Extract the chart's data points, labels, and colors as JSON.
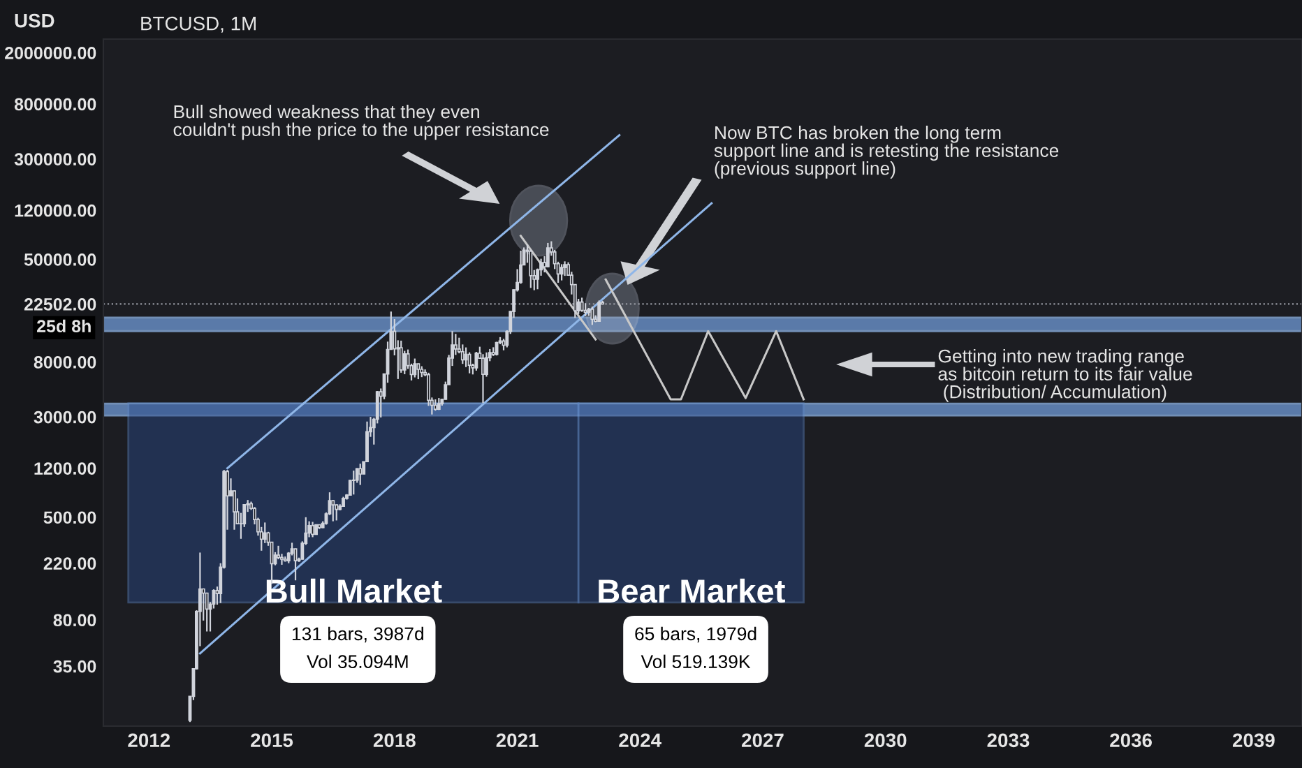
{
  "chart_data": {
    "type": "candlestick",
    "title": "BTCUSD, 1M",
    "ylabel": "USD",
    "x": [
      "2013-01",
      "2013-02",
      "2013-03",
      "2013-04",
      "2013-05",
      "2013-06",
      "2013-07",
      "2013-08",
      "2013-09",
      "2013-10",
      "2013-11",
      "2013-12",
      "2014-01",
      "2014-02",
      "2014-03",
      "2014-04",
      "2014-05",
      "2014-06",
      "2014-07",
      "2014-08",
      "2014-09",
      "2014-10",
      "2014-11",
      "2014-12",
      "2015-01",
      "2015-02",
      "2015-03",
      "2015-04",
      "2015-05",
      "2015-06",
      "2015-07",
      "2015-08",
      "2015-09",
      "2015-10",
      "2015-11",
      "2015-12",
      "2016-01",
      "2016-02",
      "2016-03",
      "2016-04",
      "2016-05",
      "2016-06",
      "2016-07",
      "2016-08",
      "2016-09",
      "2016-10",
      "2016-11",
      "2016-12",
      "2017-01",
      "2017-02",
      "2017-03",
      "2017-04",
      "2017-05",
      "2017-06",
      "2017-07",
      "2017-08",
      "2017-09",
      "2017-10",
      "2017-11",
      "2017-12",
      "2018-01",
      "2018-02",
      "2018-03",
      "2018-04",
      "2018-05",
      "2018-06",
      "2018-07",
      "2018-08",
      "2018-09",
      "2018-10",
      "2018-11",
      "2018-12",
      "2019-01",
      "2019-02",
      "2019-03",
      "2019-04",
      "2019-05",
      "2019-06",
      "2019-07",
      "2019-08",
      "2019-09",
      "2019-10",
      "2019-11",
      "2019-12",
      "2020-01",
      "2020-02",
      "2020-03",
      "2020-04",
      "2020-05",
      "2020-06",
      "2020-07",
      "2020-08",
      "2020-09",
      "2020-10",
      "2020-11",
      "2020-12",
      "2021-01",
      "2021-02",
      "2021-03",
      "2021-04",
      "2021-05",
      "2021-06",
      "2021-07",
      "2021-08",
      "2021-09",
      "2021-10",
      "2021-11",
      "2021-12",
      "2022-01",
      "2022-02",
      "2022-03",
      "2022-04",
      "2022-05",
      "2022-06",
      "2022-07",
      "2022-08",
      "2022-09",
      "2022-10",
      "2022-11",
      "2022-12",
      "2023-01",
      "2023-02"
    ],
    "ohlc": [
      [
        13.3,
        20.4,
        12.9,
        20.4
      ],
      [
        20.4,
        33.5,
        19.1,
        33.4
      ],
      [
        33.4,
        95,
        33,
        93
      ],
      [
        93,
        266,
        50,
        139
      ],
      [
        139,
        140,
        79,
        129
      ],
      [
        129,
        130,
        65,
        97
      ],
      [
        97,
        110,
        65,
        106
      ],
      [
        106,
        138,
        98,
        135
      ],
      [
        135,
        145,
        105,
        128
      ],
      [
        128,
        220,
        108,
        205
      ],
      [
        205,
        1163,
        200,
        1130
      ],
      [
        1130,
        1165,
        400,
        732
      ],
      [
        732,
        1000,
        731,
        800
      ],
      [
        800,
        805,
        400,
        550
      ],
      [
        550,
        700,
        445,
        445
      ],
      [
        445,
        540,
        340,
        445
      ],
      [
        445,
        630,
        420,
        625
      ],
      [
        625,
        680,
        550,
        636
      ],
      [
        636,
        660,
        570,
        585
      ],
      [
        585,
        600,
        440,
        480
      ],
      [
        480,
        495,
        360,
        385
      ],
      [
        385,
        420,
        275,
        338
      ],
      [
        338,
        455,
        315,
        378
      ],
      [
        378,
        385,
        300,
        320
      ],
      [
        320,
        320,
        152,
        218
      ],
      [
        218,
        268,
        212,
        254
      ],
      [
        254,
        300,
        236,
        244
      ],
      [
        244,
        260,
        214,
        236
      ],
      [
        236,
        248,
        226,
        230
      ],
      [
        230,
        268,
        220,
        263
      ],
      [
        263,
        317,
        253,
        284
      ],
      [
        284,
        285,
        162,
        230
      ],
      [
        230,
        243,
        225,
        236
      ],
      [
        236,
        325,
        235,
        314
      ],
      [
        314,
        500,
        305,
        377
      ],
      [
        377,
        465,
        350,
        430
      ],
      [
        430,
        460,
        350,
        368
      ],
      [
        368,
        440,
        365,
        437
      ],
      [
        437,
        440,
        405,
        416
      ],
      [
        416,
        465,
        412,
        448
      ],
      [
        448,
        545,
        438,
        531
      ],
      [
        531,
        780,
        520,
        673
      ],
      [
        673,
        680,
        465,
        624
      ],
      [
        624,
        627,
        472,
        575
      ],
      [
        575,
        630,
        565,
        608
      ],
      [
        608,
        720,
        603,
        700
      ],
      [
        700,
        755,
        685,
        742
      ],
      [
        742,
        975,
        740,
        964
      ],
      [
        964,
        1150,
        750,
        970
      ],
      [
        970,
        1200,
        925,
        1190
      ],
      [
        1190,
        1300,
        890,
        1080
      ],
      [
        1080,
        1350,
        1080,
        1348
      ],
      [
        1348,
        2760,
        1348,
        2300
      ],
      [
        2300,
        3000,
        2100,
        2480
      ],
      [
        2480,
        2950,
        1830,
        2875
      ],
      [
        2875,
        4760,
        2670,
        4700
      ],
      [
        4700,
        4980,
        2970,
        4340
      ],
      [
        4340,
        6450,
        4110,
        6450
      ],
      [
        6450,
        11500,
        5520,
        10000
      ],
      [
        10000,
        19666,
        10000,
        13800
      ],
      [
        13800,
        17200,
        9000,
        10100
      ],
      [
        10100,
        11780,
        5900,
        10320
      ],
      [
        10320,
        11700,
        6600,
        6930
      ],
      [
        6930,
        9750,
        6430,
        9240
      ],
      [
        9240,
        9990,
        7070,
        7490
      ],
      [
        7490,
        7760,
        5750,
        6390
      ],
      [
        6390,
        8500,
        6070,
        7730
      ],
      [
        7730,
        7760,
        5880,
        7010
      ],
      [
        7010,
        7410,
        6100,
        6630
      ],
      [
        6630,
        7000,
        6200,
        6370
      ],
      [
        6370,
        6600,
        3650,
        4040
      ],
      [
        4040,
        4240,
        3130,
        3690
      ],
      [
        3690,
        4100,
        3350,
        3440
      ],
      [
        3440,
        4200,
        3390,
        3800
      ],
      [
        3800,
        4140,
        3670,
        4100
      ],
      [
        4100,
        5630,
        4080,
        5330
      ],
      [
        5330,
        9070,
        5330,
        8570
      ],
      [
        8570,
        13880,
        7450,
        10820
      ],
      [
        10820,
        13200,
        9070,
        10080
      ],
      [
        10080,
        12330,
        9330,
        9600
      ],
      [
        9600,
        10930,
        7730,
        8300
      ],
      [
        8300,
        10370,
        7300,
        9150
      ],
      [
        9150,
        9500,
        6530,
        7550
      ],
      [
        7550,
        7750,
        6400,
        7200
      ],
      [
        7200,
        9570,
        6850,
        9350
      ],
      [
        9350,
        10500,
        8460,
        8540
      ],
      [
        8540,
        9190,
        3850,
        6410
      ],
      [
        6410,
        9480,
        6150,
        8630
      ],
      [
        8630,
        10070,
        8110,
        9450
      ],
      [
        9450,
        10400,
        8900,
        9140
      ],
      [
        9140,
        11450,
        8980,
        11330
      ],
      [
        11330,
        12460,
        10980,
        11640
      ],
      [
        11640,
        12080,
        9850,
        10780
      ],
      [
        10780,
        14100,
        10380,
        13790
      ],
      [
        13790,
        19870,
        13200,
        19700
      ],
      [
        19700,
        29300,
        17600,
        28990
      ],
      [
        28990,
        41950,
        28130,
        33100
      ],
      [
        33100,
        58350,
        32300,
        45200
      ],
      [
        45200,
        61800,
        45000,
        58800
      ],
      [
        58800,
        64900,
        47000,
        57700
      ],
      [
        57700,
        59600,
        30000,
        37300
      ],
      [
        37300,
        41300,
        28800,
        35000
      ],
      [
        35000,
        42400,
        29300,
        41500
      ],
      [
        41500,
        50500,
        37300,
        47100
      ],
      [
        47100,
        52900,
        39600,
        43800
      ],
      [
        43800,
        67000,
        43300,
        61300
      ],
      [
        61300,
        69000,
        53300,
        57000
      ],
      [
        57000,
        59100,
        42000,
        46200
      ],
      [
        46200,
        47900,
        32900,
        38500
      ],
      [
        38500,
        45800,
        34300,
        43200
      ],
      [
        43200,
        48200,
        37200,
        45500
      ],
      [
        45500,
        47400,
        37600,
        37700
      ],
      [
        37700,
        40000,
        26700,
        31800
      ],
      [
        31800,
        31900,
        17600,
        19950
      ],
      [
        19950,
        24700,
        18800,
        23300
      ],
      [
        23300,
        25200,
        19600,
        20050
      ],
      [
        20050,
        22800,
        18150,
        19420
      ],
      [
        19420,
        21000,
        18200,
        20500
      ],
      [
        20500,
        21450,
        15500,
        17150
      ],
      [
        17150,
        18400,
        16250,
        16550
      ],
      [
        16550,
        23950,
        16500,
        23130
      ],
      [
        23130,
        23800,
        22350,
        22502
      ]
    ],
    "color": "#d1d4dc",
    "series": [
      {
        "type": "line",
        "color": "#8fb6e8",
        "x": [
          "2013-12",
          "2023-07"
        ],
        "values": [
          1200,
          459000
        ]
      },
      {
        "type": "line",
        "color": "#8fb6e8",
        "x": [
          "2013-04",
          "2025-10"
        ],
        "values": [
          44,
          136000
        ]
      },
      {
        "type": "line",
        "color": "#c8c8c8",
        "x": [
          "2021-02",
          "2022-12"
        ],
        "values": [
          76000,
          11950
        ]
      },
      {
        "type": "line",
        "color": "#c8c8c8",
        "x": [
          "2023-03",
          "2024-10",
          "2025-01",
          "2025-09",
          "2026-08",
          "2027-05",
          "2028-01"
        ],
        "values": [
          34900,
          4100,
          4100,
          13850,
          4200,
          13850,
          4100
        ]
      }
    ],
    "log": true,
    "xlim": [
      "2010-11-20",
      "2040-03-07"
    ],
    "xticks": [
      "2012",
      "2015",
      "2018",
      "2021",
      "2024",
      "2027",
      "2030",
      "2033",
      "2036",
      "2039"
    ],
    "ylim": [
      12,
      2550000
    ],
    "yticks": [
      {
        "value": 35,
        "label": "35.00"
      },
      {
        "value": 80,
        "label": "80.00"
      },
      {
        "value": 220,
        "label": "220.00"
      },
      {
        "value": 500,
        "label": "500.00"
      },
      {
        "value": 1200,
        "label": "1200.00"
      },
      {
        "value": 3000,
        "label": "3000.00"
      },
      {
        "value": 8000,
        "label": "8000.00"
      },
      {
        "value": 22502,
        "label": "22502.00"
      },
      {
        "value": 50000,
        "label": "50000.00"
      },
      {
        "value": 120000,
        "label": "120000.00"
      },
      {
        "value": 300000,
        "label": "300000.00"
      },
      {
        "value": 800000,
        "label": "800000.00"
      },
      {
        "value": 2000000,
        "label": "2000000.00"
      }
    ],
    "ref_lines": [
      {
        "axis": "y",
        "value": 22502,
        "label": "25d 8h",
        "line_style": "dotted",
        "color": "#9598a1"
      }
    ],
    "bands": [
      {
        "axis": "y",
        "from": 13870,
        "to": 17660,
        "color": "#6f9ad6"
      },
      {
        "axis": "y",
        "from": 3070,
        "to": 3800,
        "color": "#6f9ad6"
      },
      {
        "axis": "x",
        "from": "2011-07",
        "to": "2022-07",
        "label": "Bull Market",
        "color": "#2a4a8a"
      },
      {
        "axis": "x",
        "from": "2022-07",
        "to": "2028-01",
        "label": "Bear Market",
        "color": "#2a4a8a"
      }
    ],
    "annotations": [
      "Bull showed weakness that they even\ncouldn't push the price to the upper resistance",
      "Now BTC has broken the long term\nsupport line and is retesting the resistance\n(previous support line)",
      "Getting into new trading range\nas bitcoin return to its fair value\n (Distribution/ Accumulation)",
      "131 bars, 3987d\nVol 35.094M",
      "65 bars, 1979d\nVol 519.139K"
    ],
    "grid": false,
    "legend": false
  }
}
